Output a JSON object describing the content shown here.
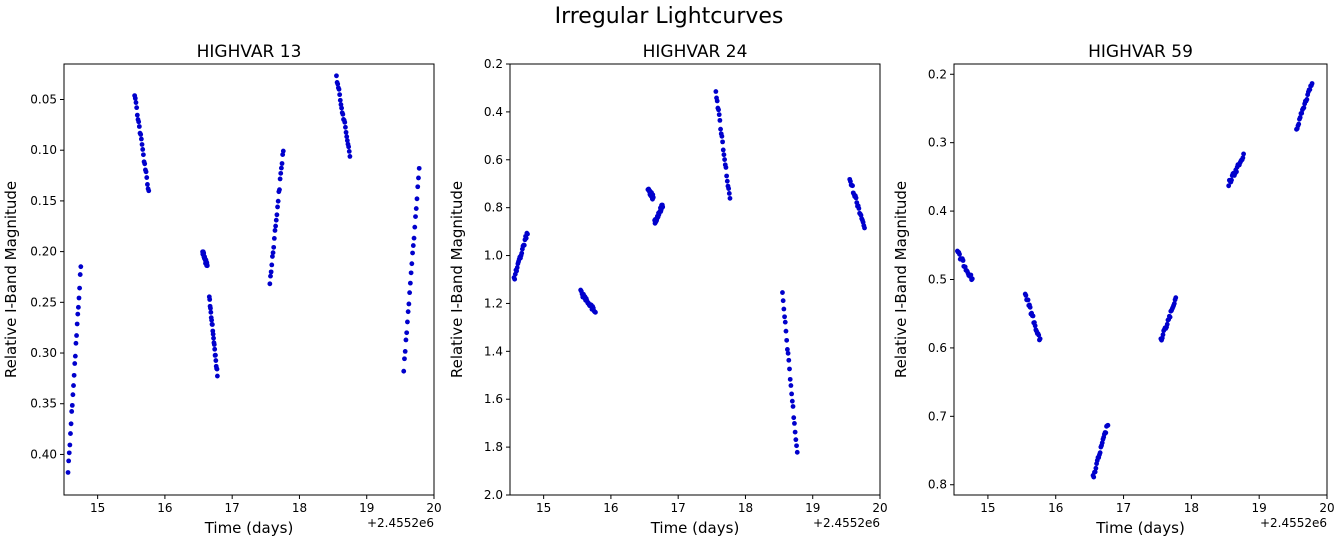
{
  "figure": {
    "suptitle": "Irregular Lightcurves"
  },
  "chart_data": [
    {
      "type": "scatter",
      "title": "HIGHVAR 13",
      "xlabel": "Time (days)",
      "ylabel": "Relative I-Band Magnitude",
      "x_offset_label": "+2.4552e6",
      "xlim": [
        14.5,
        20.0
      ],
      "ylim": [
        0.44,
        0.015
      ],
      "y_inverted": true,
      "xticks": [
        15,
        16,
        17,
        18,
        19,
        20
      ],
      "yticks": [
        0.05,
        0.1,
        0.15,
        0.2,
        0.25,
        0.3,
        0.35,
        0.4
      ],
      "ytick_labels": [
        "0.05",
        "0.10",
        "0.15",
        "0.20",
        "0.25",
        "0.30",
        "0.35",
        "0.40"
      ],
      "marker_color": "#0000cc",
      "segments": [
        {
          "x": [
            14.56,
            14.75
          ],
          "y": [
            0.417,
            0.215
          ]
        },
        {
          "x": [
            15.55,
            15.76
          ],
          "y": [
            0.045,
            0.141
          ]
        },
        {
          "x": [
            16.56,
            16.63
          ],
          "y": [
            0.2,
            0.215
          ]
        },
        {
          "x": [
            16.66,
            16.78
          ],
          "y": [
            0.245,
            0.322
          ]
        },
        {
          "x": [
            17.56,
            17.76
          ],
          "y": [
            0.231,
            0.099
          ]
        },
        {
          "x": [
            18.55,
            18.75
          ],
          "y": [
            0.028,
            0.104
          ]
        },
        {
          "x": [
            19.55,
            19.78
          ],
          "y": [
            0.317,
            0.118
          ]
        }
      ]
    },
    {
      "type": "scatter",
      "title": "HIGHVAR 24",
      "xlabel": "Time (days)",
      "ylabel": "Relative I-Band Magnitude",
      "x_offset_label": "+2.4552e6",
      "xlim": [
        14.5,
        20.0
      ],
      "ylim": [
        2.0,
        0.2
      ],
      "y_inverted": true,
      "xticks": [
        15,
        16,
        17,
        18,
        19,
        20
      ],
      "yticks": [
        0.2,
        0.4,
        0.6,
        0.8,
        1.0,
        1.2,
        1.4,
        1.6,
        1.8,
        2.0
      ],
      "ytick_labels": [
        "0.2",
        "0.4",
        "0.6",
        "0.8",
        "1.0",
        "1.2",
        "1.4",
        "1.6",
        "1.8",
        "2.0"
      ],
      "marker_color": "#0000cc",
      "segments": [
        {
          "x": [
            14.56,
            14.76
          ],
          "y": [
            1.1,
            0.9
          ]
        },
        {
          "x": [
            15.55,
            15.77
          ],
          "y": [
            1.15,
            1.24
          ]
        },
        {
          "x": [
            16.55,
            16.63
          ],
          "y": [
            0.72,
            0.76
          ]
        },
        {
          "x": [
            16.65,
            16.77
          ],
          "y": [
            0.86,
            0.79
          ]
        },
        {
          "x": [
            17.56,
            17.77
          ],
          "y": [
            0.31,
            0.77
          ]
        },
        {
          "x": [
            18.55,
            18.77
          ],
          "y": [
            1.16,
            1.83
          ]
        },
        {
          "x": [
            19.55,
            19.77
          ],
          "y": [
            0.68,
            0.88
          ]
        }
      ]
    },
    {
      "type": "scatter",
      "title": "HIGHVAR 59",
      "xlabel": "Time (days)",
      "ylabel": "Relative I-Band Magnitude",
      "x_offset_label": "+2.4552e6",
      "xlim": [
        14.5,
        20.0
      ],
      "ylim": [
        0.815,
        0.185
      ],
      "y_inverted": true,
      "xticks": [
        15,
        16,
        17,
        18,
        19,
        20
      ],
      "yticks": [
        0.2,
        0.3,
        0.4,
        0.5,
        0.6,
        0.7,
        0.8
      ],
      "ytick_labels": [
        "0.2",
        "0.3",
        "0.4",
        "0.5",
        "0.6",
        "0.7",
        "0.8"
      ],
      "marker_color": "#0000cc",
      "segments": [
        {
          "x": [
            14.55,
            14.77
          ],
          "y": [
            0.46,
            0.5
          ]
        },
        {
          "x": [
            15.55,
            15.77
          ],
          "y": [
            0.52,
            0.59
          ]
        },
        {
          "x": [
            16.55,
            16.77
          ],
          "y": [
            0.79,
            0.71
          ]
        },
        {
          "x": [
            17.55,
            17.77
          ],
          "y": [
            0.59,
            0.53
          ]
        },
        {
          "x": [
            18.55,
            18.77
          ],
          "y": [
            0.36,
            0.32
          ]
        },
        {
          "x": [
            19.55,
            19.78
          ],
          "y": [
            0.28,
            0.21
          ]
        }
      ]
    }
  ]
}
